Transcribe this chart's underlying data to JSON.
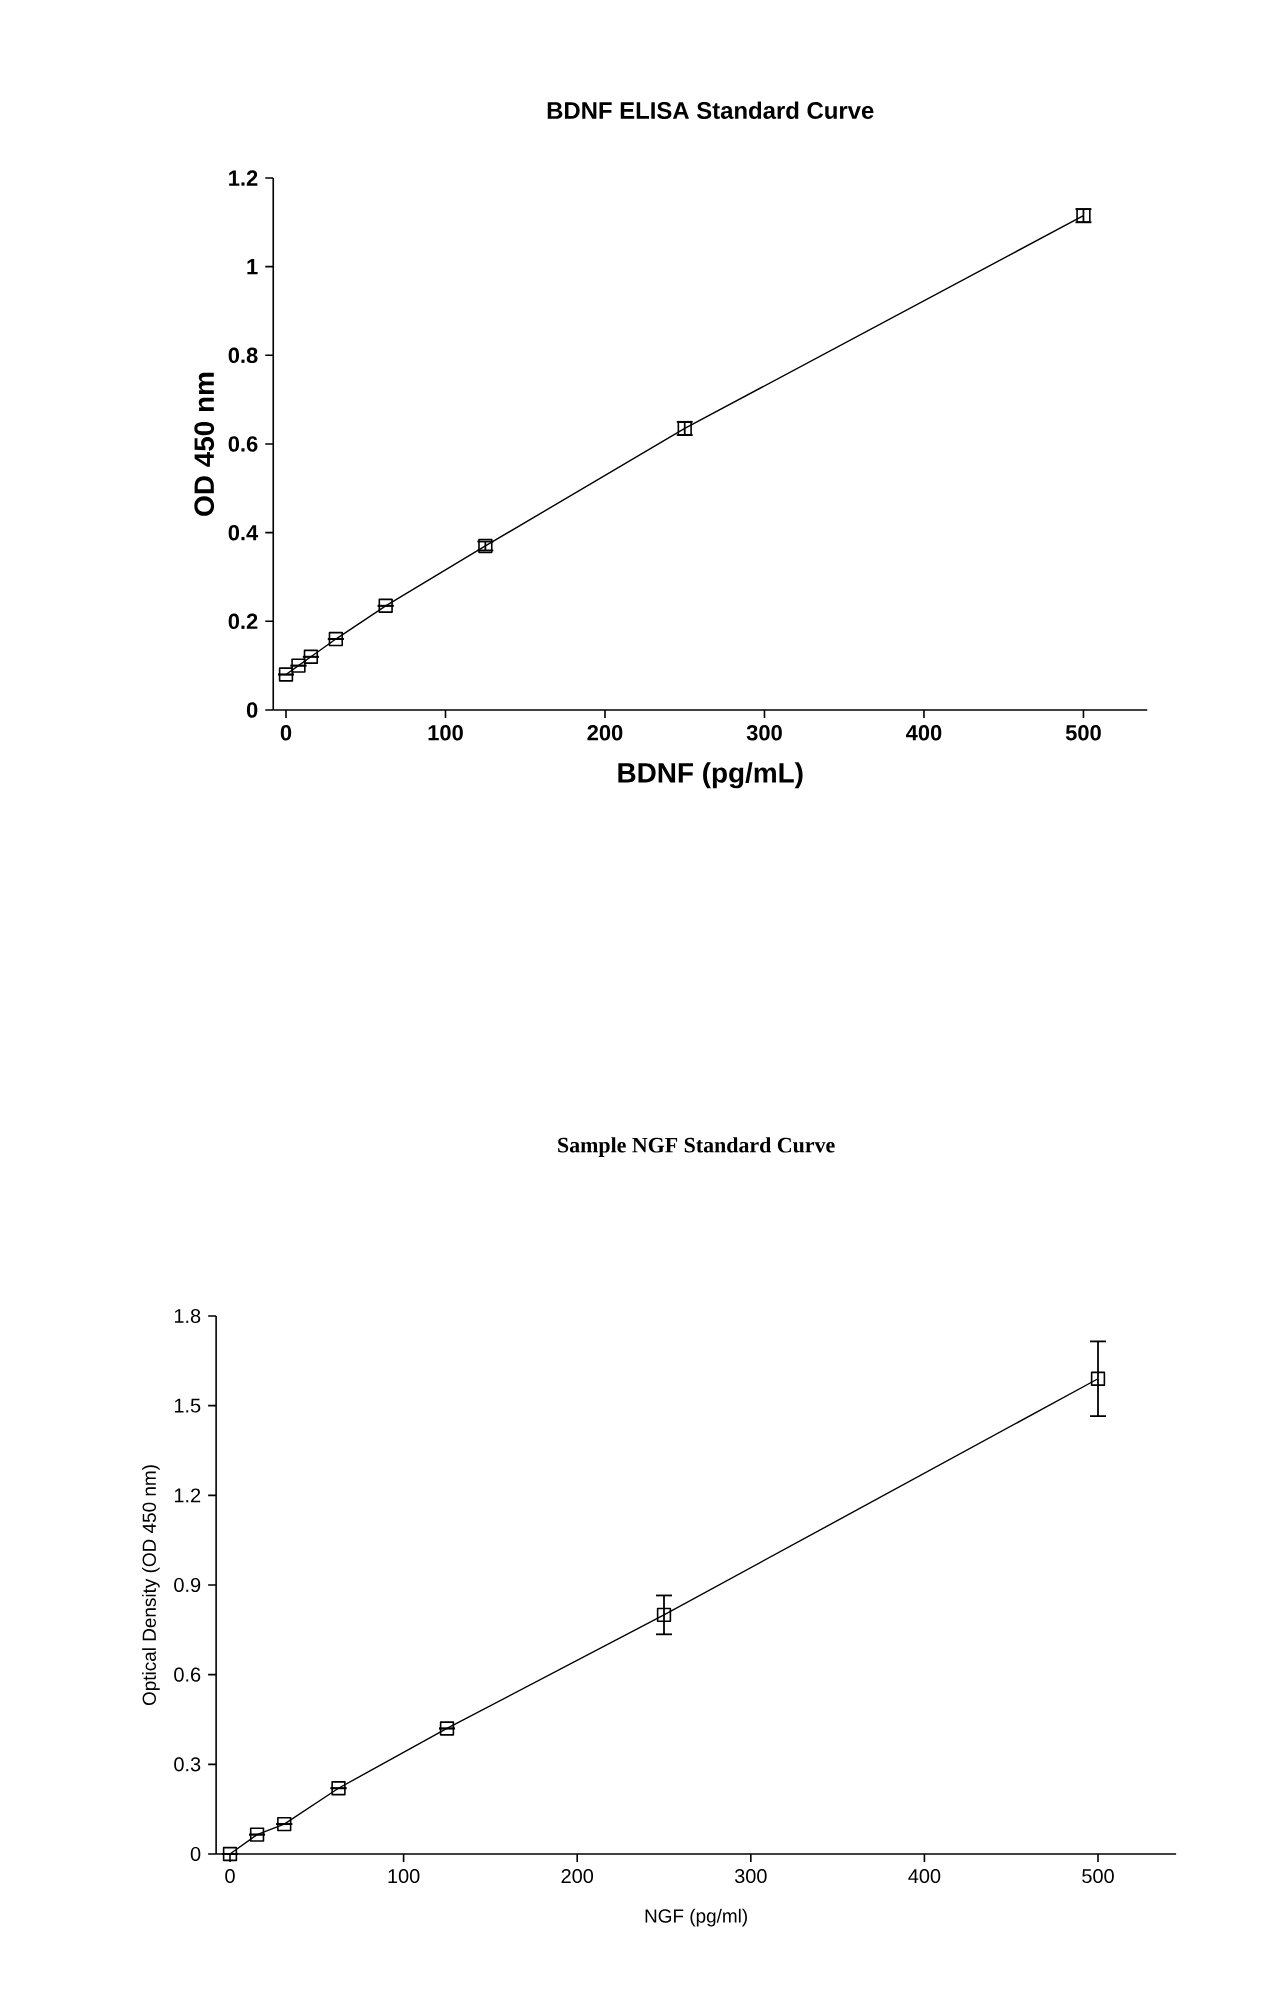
{
  "chart_data": [
    {
      "type": "line",
      "title": "BDNF ELISA Standard Curve",
      "xlabel": "BDNF (pg/mL)",
      "ylabel": "OD 450 nm",
      "x": [
        0,
        7.8,
        15.6,
        31.25,
        62.5,
        125,
        250,
        500
      ],
      "series": [
        {
          "color": "#000000",
          "values": [
            0.08,
            0.1,
            0.12,
            0.16,
            0.235,
            0.37,
            0.635,
            1.115
          ],
          "errors": [
            null,
            null,
            null,
            null,
            null,
            0.01,
            0.015,
            0.015
          ]
        }
      ],
      "marker": "square",
      "line_style": "solid",
      "xlim": [
        -8,
        540
      ],
      "ylim": [
        0,
        1.2
      ],
      "xticks": [
        0,
        100,
        200,
        300,
        400,
        500
      ],
      "yticks": [
        0,
        0.2,
        0.4,
        0.6,
        0.8,
        1,
        1.2
      ]
    },
    {
      "type": "line",
      "title": "Sample NGF Standard Curve",
      "xlabel": "NGF (pg/ml)",
      "ylabel": "Optical Density (OD 450 nm)",
      "x": [
        0,
        15.6,
        31.25,
        62.5,
        125,
        250,
        500
      ],
      "series": [
        {
          "color": "#000000",
          "values": [
            0,
            0.065,
            0.1,
            0.22,
            0.42,
            0.8,
            1.59
          ],
          "errors": [
            null,
            null,
            null,
            null,
            null,
            0.065,
            0.125
          ]
        }
      ],
      "marker": "square",
      "line_style": "solid",
      "xlim": [
        -8,
        545
      ],
      "ylim": [
        0,
        1.8
      ],
      "xticks": [
        0,
        100,
        200,
        300,
        400,
        500
      ],
      "yticks": [
        0,
        0.3,
        0.6,
        0.9,
        1.2,
        1.5,
        1.8
      ]
    }
  ]
}
